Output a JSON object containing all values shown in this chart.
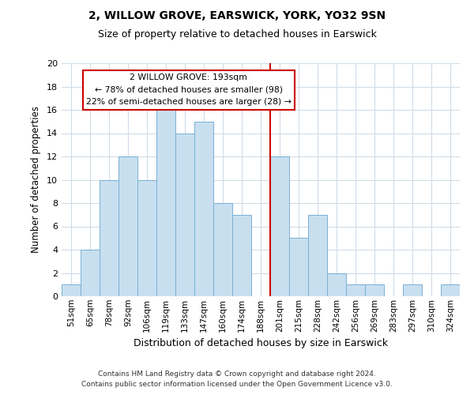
{
  "title": "2, WILLOW GROVE, EARSWICK, YORK, YO32 9SN",
  "subtitle": "Size of property relative to detached houses in Earswick",
  "xlabel": "Distribution of detached houses by size in Earswick",
  "ylabel": "Number of detached properties",
  "bin_labels": [
    "51sqm",
    "65sqm",
    "78sqm",
    "92sqm",
    "106sqm",
    "119sqm",
    "133sqm",
    "147sqm",
    "160sqm",
    "174sqm",
    "188sqm",
    "201sqm",
    "215sqm",
    "228sqm",
    "242sqm",
    "256sqm",
    "269sqm",
    "283sqm",
    "297sqm",
    "310sqm",
    "324sqm"
  ],
  "bar_values": [
    1,
    4,
    10,
    12,
    10,
    16,
    14,
    15,
    8,
    7,
    0,
    12,
    5,
    7,
    2,
    1,
    1,
    0,
    1,
    0,
    1
  ],
  "bar_color": "#c8dff0",
  "bar_edge_color": "#7ab0d4",
  "vline_color": "#cc0000",
  "annotation_title": "2 WILLOW GROVE: 193sqm",
  "annotation_line1": "← 78% of detached houses are smaller (98)",
  "annotation_line2": "22% of semi-detached houses are larger (28) →",
  "annotation_box_color": "#ffffff",
  "annotation_box_edge": "#cc0000",
  "ylim": [
    0,
    20
  ],
  "yticks": [
    0,
    2,
    4,
    6,
    8,
    10,
    12,
    14,
    16,
    18,
    20
  ],
  "footer1": "Contains HM Land Registry data © Crown copyright and database right 2024.",
  "footer2": "Contains public sector information licensed under the Open Government Licence v3.0.",
  "background_color": "#ffffff",
  "grid_color": "#d0dce8",
  "title_fontsize": 10,
  "subtitle_fontsize": 9,
  "ylabel_fontsize": 8.5,
  "xlabel_fontsize": 9
}
